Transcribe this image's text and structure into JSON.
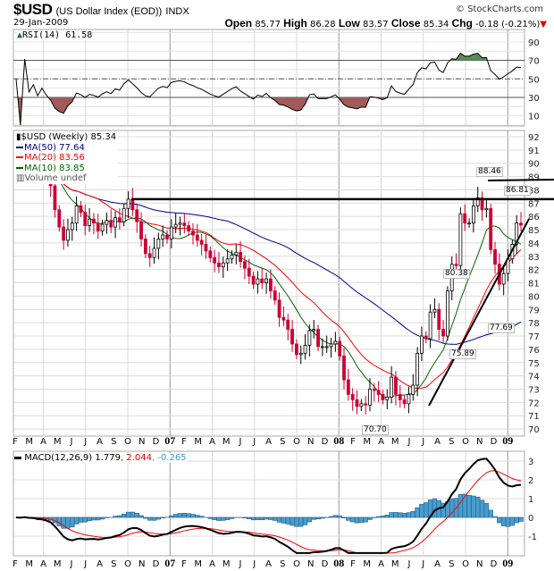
{
  "header": {
    "symbol": "$USD",
    "name": "(US Dollar Index (EOD))",
    "exchange": "INDX",
    "copyright": "© StockCharts.com",
    "date": "29-Jan-2009",
    "open_label": "Open",
    "open": "85.77",
    "high_label": "High",
    "high": "86.28",
    "low_label": "Low",
    "low": "83.57",
    "close_label": "Close",
    "close": "85.34",
    "chg_label": "Chg",
    "chg": "-0.18 (-0.21%)",
    "chg_icon": "triangle-down-icon"
  },
  "rsi": {
    "label": "RSI(14) 61.58",
    "ticks": [
      90,
      70,
      50,
      30,
      10
    ],
    "levels": [
      30,
      50,
      70
    ],
    "fill_over": "#5a8a5a",
    "fill_under": "#a05a5a"
  },
  "legend": {
    "price": "$USD (Weekly) 85.34",
    "ma50": "MA(50) 77.64",
    "ma20": "MA(20) 83.56",
    "ma10": "MA(10) 83.85",
    "volume": "Volume undef",
    "colors": {
      "ma50": "#00008b",
      "ma20": "#ff0000",
      "ma10": "#006400",
      "up": "#ffffff",
      "down": "#cc0033"
    }
  },
  "macd": {
    "label": "MACD(12,26,9) 1.779",
    "signal": ", 2.044",
    "hist": ", -0.265",
    "ticks": [
      3,
      2,
      1,
      0,
      -1
    ],
    "colors": {
      "macd": "#000000",
      "signal": "#ff0000",
      "hist": "#3399cc"
    }
  },
  "chart_data": {
    "type": "candlestick",
    "title": "$USD (Weekly)",
    "ylim": [
      70,
      92
    ],
    "y_ticks": [
      70,
      71,
      72,
      73,
      74,
      75,
      76,
      77,
      78,
      79,
      80,
      81,
      82,
      83,
      84,
      85,
      86,
      87,
      88,
      89,
      90,
      91,
      92
    ],
    "x_ticks": [
      "F",
      "M",
      "A",
      "M",
      "J",
      "J",
      "A",
      "S",
      "O",
      "N",
      "D",
      "07",
      "F",
      "M",
      "A",
      "M",
      "J",
      "J",
      "A",
      "S",
      "O",
      "N",
      "D",
      "08",
      "F",
      "M",
      "A",
      "M",
      "J",
      "J",
      "A",
      "S",
      "O",
      "N",
      "D",
      "09"
    ],
    "closes": [
      90.0,
      89.8,
      90.3,
      89.6,
      89.8,
      89.2,
      89.5,
      88.9,
      88.3,
      86.5,
      85.2,
      84.2,
      85.0,
      85.5,
      86.8,
      86.3,
      85.3,
      85.8,
      85.5,
      84.9,
      85.4,
      85.7,
      85.2,
      85.9,
      85.6,
      86.6,
      87.3,
      86.5,
      85.6,
      84.3,
      83.2,
      82.9,
      83.6,
      84.3,
      84.6,
      84.3,
      85.2,
      85.4,
      85.5,
      85.3,
      84.9,
      84.6,
      84.2,
      83.9,
      83.4,
      82.9,
      82.5,
      82.2,
      82.5,
      82.8,
      83.1,
      83.3,
      82.6,
      82.1,
      81.5,
      80.9,
      81.3,
      81.0,
      81.3,
      80.4,
      79.7,
      78.4,
      78.2,
      77.5,
      76.4,
      75.6,
      75.7,
      76.3,
      77.4,
      77.5,
      76.2,
      76.2,
      76.2,
      76.4,
      76.6,
      75.5,
      73.7,
      72.6,
      72.2,
      71.7,
      71.9,
      71.8,
      73.0,
      72.9,
      72.6,
      72.2,
      72.4,
      73.9,
      72.6,
      72.2,
      71.9,
      72.6,
      73.3,
      75.7,
      77.0,
      76.8,
      78.8,
      79.0,
      77.5,
      77.0,
      80.4,
      82.4,
      82.3,
      86.2,
      85.5,
      85.5,
      86.8,
      87.4,
      86.5,
      86.6,
      83.5,
      82.4,
      80.9,
      81.7,
      82.8,
      83.9,
      85.5,
      85.34
    ],
    "annotations": [
      "88.46",
      "86.81",
      "80.38",
      "75.89",
      "77.69",
      "70.70"
    ],
    "resistance_level": 87.3,
    "grid": true
  }
}
